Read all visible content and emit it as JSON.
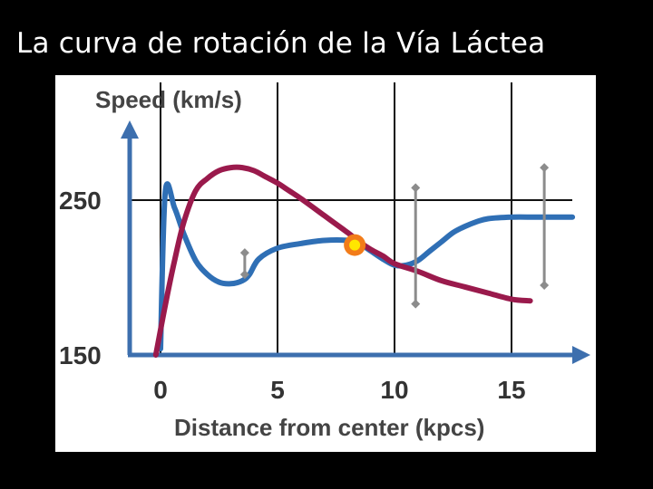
{
  "slide": {
    "title": "La curva de rotación de la Vía Láctea"
  },
  "chart_data": {
    "type": "line",
    "title": "",
    "xlabel": "Distance from center (kpcs)",
    "ylabel": "Speed (km/s)",
    "xlim": [
      -0.5,
      18
    ],
    "ylim": [
      150,
      300
    ],
    "x_ticks": [
      0,
      5,
      10,
      15
    ],
    "x_tick_labels": [
      "0",
      "5",
      "10",
      "15"
    ],
    "y_ticks": [
      150,
      250
    ],
    "y_tick_labels": [
      "150",
      "250"
    ],
    "grid": true,
    "legend": "none",
    "colors": {
      "observed": "#2f6fb5",
      "predicted": "#9a1a4c",
      "axis": "#3d6fae",
      "error_bar": "#8c8c8c",
      "sun_outer": "#f27c1a",
      "sun_inner": "#ffe600"
    },
    "series": [
      {
        "key": "observed",
        "x": [
          0,
          0.2,
          0.6,
          1.0,
          1.5,
          2.0,
          2.5,
          3.0,
          3.5,
          3.8,
          4.2,
          5.0,
          6.0,
          7.0,
          8.0,
          8.5,
          9.0,
          9.5,
          10.0,
          10.5,
          11.0,
          11.5,
          12.0,
          12.5,
          13.0,
          13.5,
          14.0,
          15.0,
          16.0,
          17.0,
          17.6
        ],
        "y": [
          154,
          255,
          245,
          228,
          211,
          202,
          197,
          196,
          198,
          202,
          212,
          219,
          222,
          224,
          224,
          222,
          217,
          212,
          208,
          208,
          211,
          217,
          223,
          229,
          233,
          236,
          238,
          239,
          239,
          239,
          239
        ]
      },
      {
        "key": "predicted",
        "x": [
          -0.2,
          0.2,
          0.6,
          1.0,
          1.5,
          2.0,
          2.5,
          3.0,
          3.5,
          4.0,
          4.5,
          5.0,
          5.5,
          6.0,
          7.0,
          8.0,
          8.5,
          9.0,
          9.5,
          10.0,
          11.0,
          12.0,
          13.0,
          14.0,
          15.0,
          15.8
        ],
        "y": [
          150,
          182,
          211,
          236,
          256,
          264,
          269,
          271,
          271,
          269,
          265,
          261,
          256,
          251,
          240,
          229,
          223,
          218,
          214,
          209,
          204,
          198,
          194,
          190,
          186,
          185
        ]
      }
    ],
    "error_bars": [
      {
        "x": 3.6,
        "low": 202,
        "high": 216
      },
      {
        "x": 10.9,
        "low": 183,
        "high": 258
      },
      {
        "x": 16.4,
        "low": 195,
        "high": 271
      }
    ],
    "sun_marker": {
      "x": 8.3,
      "y": 221
    }
  }
}
